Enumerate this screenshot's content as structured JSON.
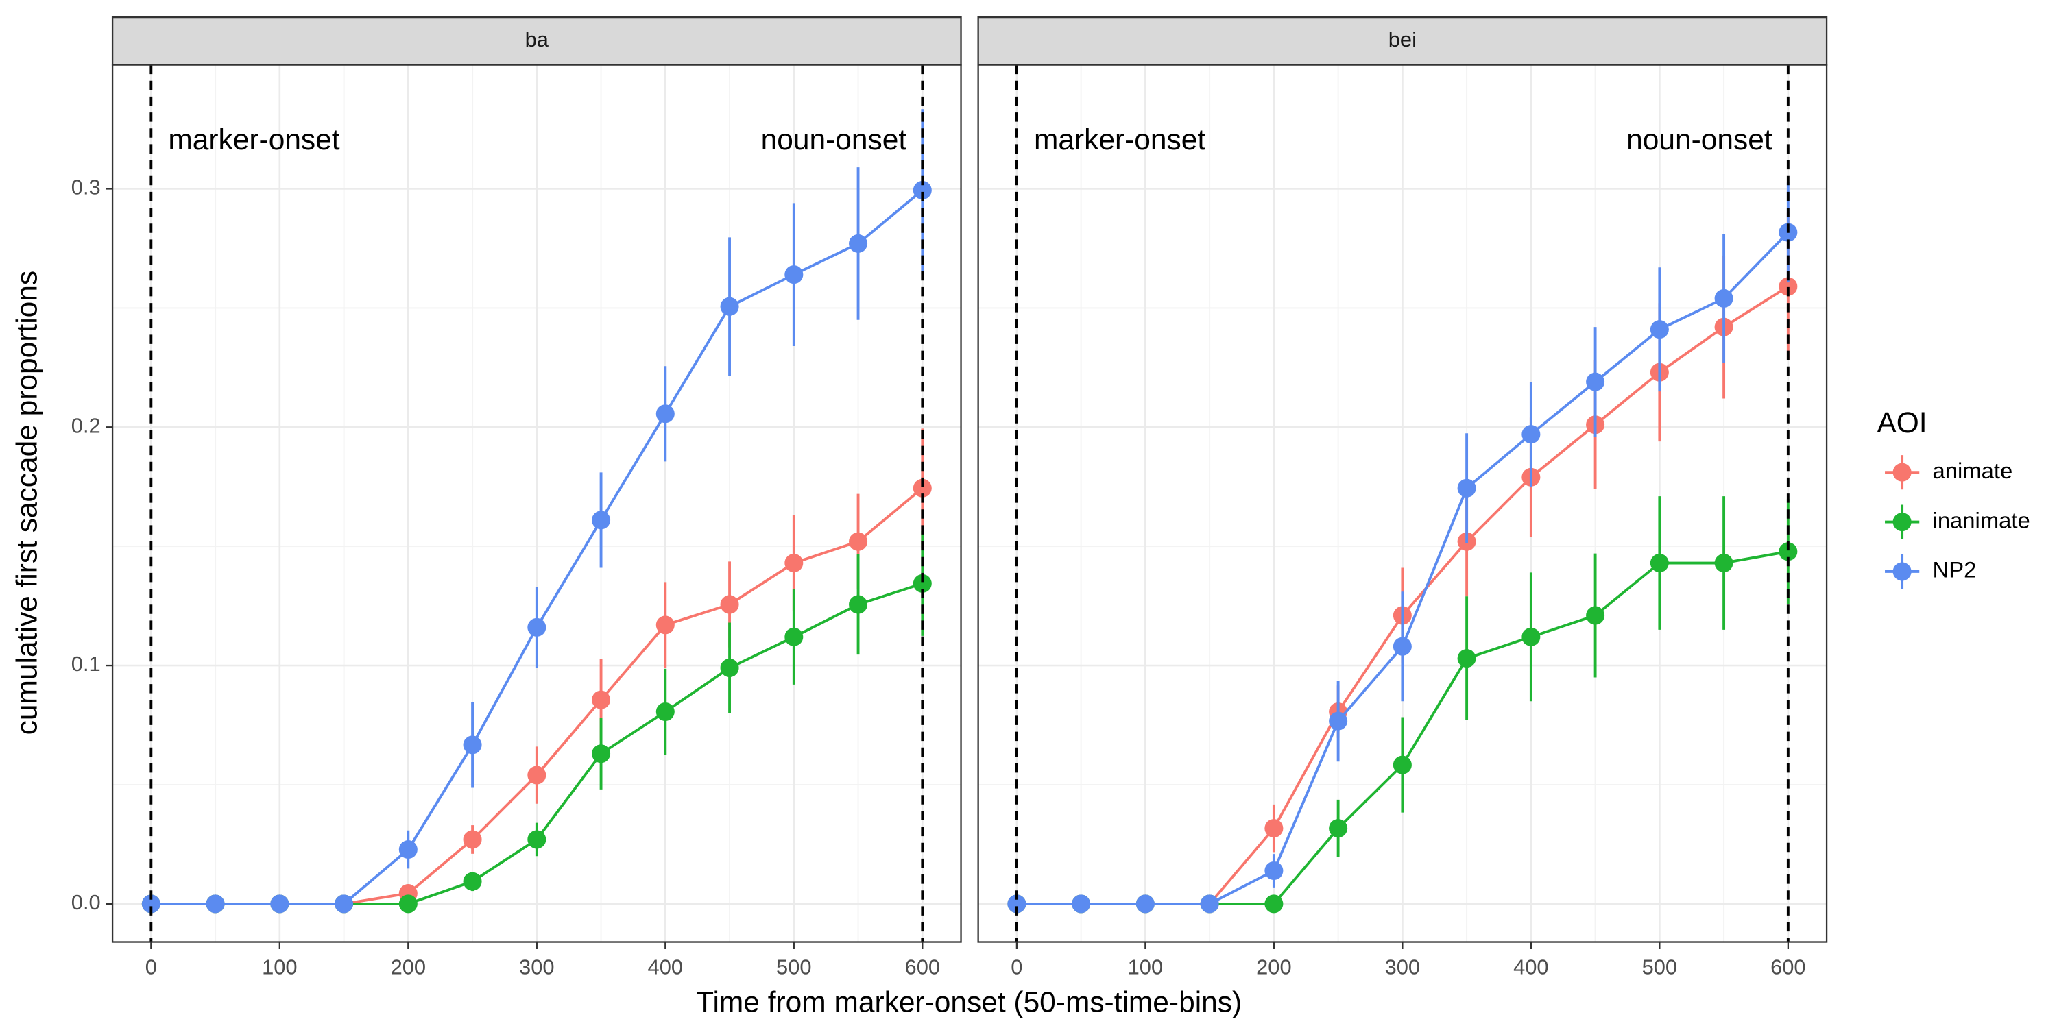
{
  "chart_data": {
    "type": "line",
    "xlabel": "Time from marker-onset (50-ms-time-bins)",
    "ylabel": "cumulative first saccade proportions",
    "legend_title": "AOI",
    "xlim": [
      -30,
      630
    ],
    "xticks": [
      0,
      100,
      200,
      300,
      400,
      500,
      600
    ],
    "ylim": [
      -0.016,
      0.352
    ],
    "yticks": [
      {
        "value": 0,
        "label": "0.0"
      },
      0.1,
      0.2,
      0.3
    ],
    "grid": true,
    "vlines": [
      0,
      600
    ],
    "vline_labels": [
      "marker-onset",
      "noun-onset"
    ],
    "x": [
      0,
      50,
      100,
      150,
      200,
      250,
      300,
      350,
      400,
      450,
      500,
      550,
      600
    ],
    "facets": [
      {
        "title": "ba",
        "series": [
          {
            "name": "animate",
            "color": "#f8766d",
            "values": [
              0,
              0,
              0,
              0,
              0.0044,
              0.027,
              0.054,
              0.0856,
              0.117,
              0.1256,
              0.143,
              0.152,
              0.1744
            ],
            "errors": [
              0,
              0,
              0,
              0,
              0.002,
              0.006,
              0.012,
              0.017,
              0.018,
              0.018,
              0.02,
              0.02,
              0.025
            ]
          },
          {
            "name": "inanimate",
            "color": "#1fb532",
            "values": [
              0,
              0,
              0,
              0,
              0,
              0.0094,
              0.027,
              0.063,
              0.0806,
              0.099,
              0.112,
              0.1256,
              0.1344
            ],
            "errors": [
              0,
              0,
              0,
              0,
              0,
              0.004,
              0.007,
              0.015,
              0.018,
              0.019,
              0.02,
              0.021,
              0.022
            ]
          },
          {
            "name": "NP2",
            "color": "#5b8bf0",
            "values": [
              0,
              0,
              0,
              0,
              0.0228,
              0.0667,
              0.116,
              0.161,
              0.2056,
              0.2506,
              0.264,
              0.277,
              0.2994
            ],
            "errors": [
              0,
              0,
              0,
              0,
              0.008,
              0.018,
              0.017,
              0.02,
              0.02,
              0.029,
              0.03,
              0.032,
              0.034
            ]
          }
        ]
      },
      {
        "title": "bei",
        "series": [
          {
            "name": "animate",
            "color": "#f8766d",
            "values": [
              0,
              0,
              0,
              0,
              0.0317,
              0.0806,
              0.121,
              0.152,
              0.179,
              0.201,
              0.223,
              0.242,
              0.259
            ],
            "errors": [
              0,
              0,
              0,
              0,
              0.01,
              0.011,
              0.02,
              0.023,
              0.025,
              0.027,
              0.029,
              0.03,
              0.031
            ]
          },
          {
            "name": "inanimate",
            "color": "#1fb532",
            "values": [
              0,
              0,
              0,
              0,
              0,
              0.0317,
              0.0583,
              0.103,
              0.112,
              0.121,
              0.143,
              0.143,
              0.1478
            ],
            "errors": [
              0,
              0,
              0,
              0,
              0,
              0.012,
              0.02,
              0.026,
              0.027,
              0.026,
              0.028,
              0.028,
              0.022
            ]
          },
          {
            "name": "NP2",
            "color": "#5b8bf0",
            "values": [
              0,
              0,
              0,
              0,
              0.0139,
              0.0767,
              0.108,
              0.1744,
              0.197,
              0.219,
              0.241,
              0.254,
              0.2817
            ],
            "errors": [
              0,
              0,
              0,
              0,
              0.007,
              0.017,
              0.023,
              0.023,
              0.022,
              0.023,
              0.026,
              0.027,
              0.021
            ]
          }
        ]
      }
    ]
  }
}
